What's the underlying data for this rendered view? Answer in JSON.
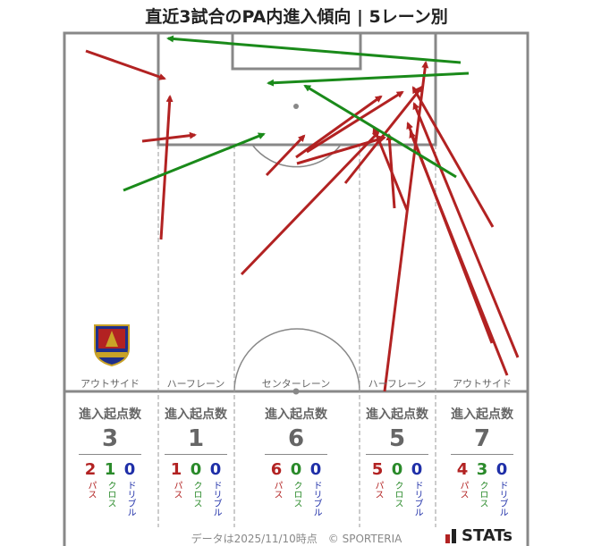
{
  "title": "直近3試合のPA内進入傾向 | 5レーン別",
  "lanes": [
    {
      "label": "アウトサイド",
      "header": "進入起点数",
      "total": "3",
      "pass": "2",
      "cross": "1",
      "dribble": "0"
    },
    {
      "label": "ハーフレーン",
      "header": "進入起点数",
      "total": "1",
      "pass": "1",
      "cross": "0",
      "dribble": "0"
    },
    {
      "label": "センターレーン",
      "header": "進入起点数",
      "total": "6",
      "pass": "6",
      "cross": "0",
      "dribble": "0"
    },
    {
      "label": "ハーフレーン",
      "header": "進入起点数",
      "total": "5",
      "pass": "5",
      "cross": "0",
      "dribble": "0"
    },
    {
      "label": "アウトサイド",
      "header": "進入起点数",
      "total": "7",
      "pass": "4",
      "cross": "3",
      "dribble": "0"
    }
  ],
  "legend": {
    "pass": "パス",
    "cross": "クロス",
    "dribble": "ドリブル"
  },
  "colors": {
    "pass": "#b22222",
    "cross": "#1a8a1a",
    "dribble": "#1f2fa8",
    "pitch_line": "#888888"
  },
  "footer": "データは2025/11/10時点　© SPORTERIA",
  "brand": "STATs"
}
